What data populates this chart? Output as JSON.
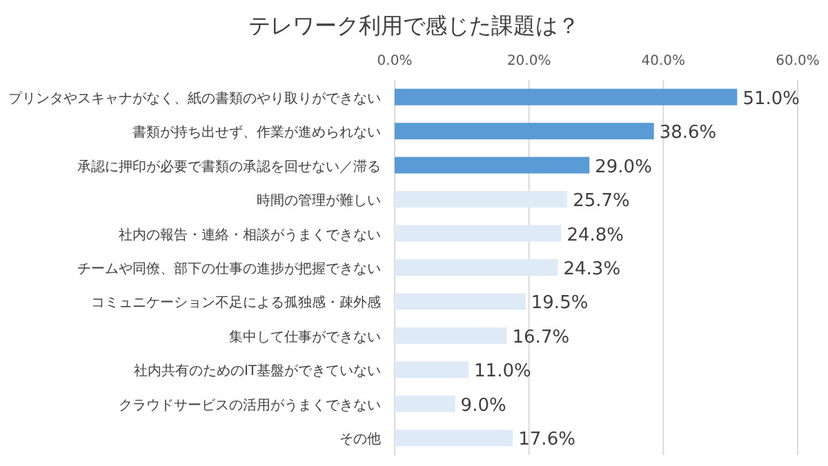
{
  "chart_data": {
    "type": "bar",
    "orientation": "horizontal",
    "title": "テレワーク利用で感じた課題は？",
    "categories": [
      "プリンタやスキャナがなく、紙の書類のやり取りができない",
      "書類が持ち出せず、作業が進められない",
      "承認に押印が必要で書類の承認を回せない／滞る",
      "時間の管理が難しい",
      "社内の報告・連絡・相談がうまくできない",
      "チームや同僚、部下の仕事の進捗が把握できない",
      "コミュニケーション不足による孤独感・疎外感",
      "集中して仕事ができない",
      "社内共有のためのIT基盤ができていない",
      "クラウドサービスの活用がうまくできない",
      "その他"
    ],
    "values": [
      51.0,
      38.6,
      29.0,
      25.7,
      24.8,
      24.3,
      19.5,
      16.7,
      11.0,
      9.0,
      17.6
    ],
    "value_labels": [
      "51.0%",
      "38.6%",
      "29.0%",
      "25.7%",
      "24.8%",
      "24.3%",
      "19.5%",
      "16.7%",
      "11.0%",
      "9.0%",
      "17.6%"
    ],
    "colors": [
      "#5b9bd5",
      "#5b9bd5",
      "#5b9bd5",
      "#deebf7",
      "#deebf7",
      "#deebf7",
      "#deebf7",
      "#deebf7",
      "#deebf7",
      "#deebf7",
      "#deebf7"
    ],
    "xlim": [
      0,
      60
    ],
    "xticks": [
      {
        "value": 0,
        "label": "0.0%"
      },
      {
        "value": 20,
        "label": "20.0%"
      },
      {
        "value": 40,
        "label": "40.0%"
      },
      {
        "value": 60,
        "label": "60.0%"
      }
    ],
    "grid": "x"
  }
}
